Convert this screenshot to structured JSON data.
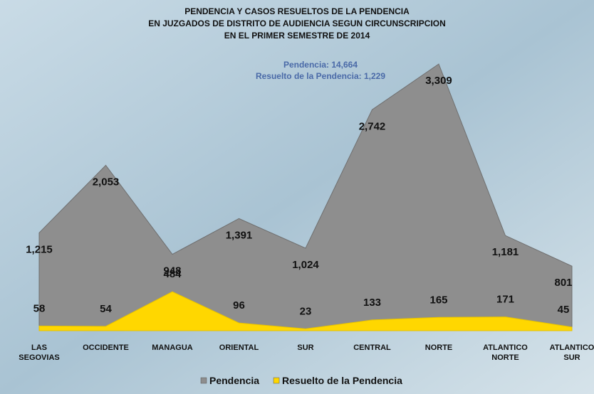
{
  "chart_data": {
    "type": "area",
    "title": [
      "PENDENCIA Y CASOS RESUELTOS DE LA PENDENCIA",
      "EN JUZGADOS DE DISTRITO DE AUDIENCIA SEGUN CIRCUNSCRIPCION",
      "EN EL PRIMER SEMESTRE DE 2014"
    ],
    "annotations": [
      "Pendencia: 14,664",
      "Resuelto de la Pendencia: 1,229"
    ],
    "categories": [
      "LAS SEGOVIAS",
      "OCCIDENTE",
      "MANAGUA",
      "ORIENTAL",
      "SUR",
      "CENTRAL",
      "NORTE",
      "ATLANTICO NORTE",
      "ATLANTICO SUR"
    ],
    "series": [
      {
        "name": "Pendencia",
        "color": "#8e8e8e",
        "values": [
          1215,
          2053,
          948,
          1391,
          1024,
          2742,
          3309,
          1181,
          801
        ],
        "value_labels": [
          "1,215",
          "2,053",
          "948",
          "1,391",
          "1,024",
          "2,742",
          "3,309",
          "1,181",
          "801"
        ]
      },
      {
        "name": "Resuelto de la Pendencia",
        "color": "#ffd700",
        "values": [
          58,
          54,
          484,
          96,
          23,
          133,
          165,
          171,
          45
        ]
      }
    ],
    "legend": "bottom"
  }
}
